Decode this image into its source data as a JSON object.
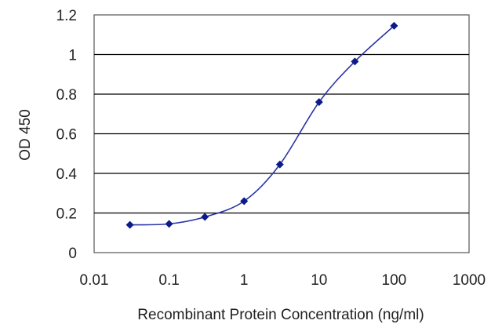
{
  "chart_data": {
    "type": "line",
    "title": "",
    "xlabel": "Recombinant Protein Concentration (ng/ml)",
    "ylabel": "OD 450",
    "x_scale": "log",
    "xlim": [
      0.01,
      1000
    ],
    "ylim": [
      0,
      1.2
    ],
    "x_ticks": [
      "0.01",
      "0.1",
      "1",
      "10",
      "100",
      "1000"
    ],
    "y_ticks": [
      "0",
      "0.2",
      "0.4",
      "0.6",
      "0.8",
      "1",
      "1.2"
    ],
    "grid": "horizontal",
    "legend": "none",
    "series": [
      {
        "x": [
          0.03,
          0.1,
          0.3,
          1,
          3,
          10,
          30,
          100
        ],
        "y": [
          0.14,
          0.145,
          0.18,
          0.26,
          0.445,
          0.76,
          0.965,
          1.145
        ]
      }
    ],
    "colors": {
      "line": "#2b35a8",
      "marker": "#0d1b8a",
      "grid": "#000000",
      "frame": "#555555"
    }
  }
}
